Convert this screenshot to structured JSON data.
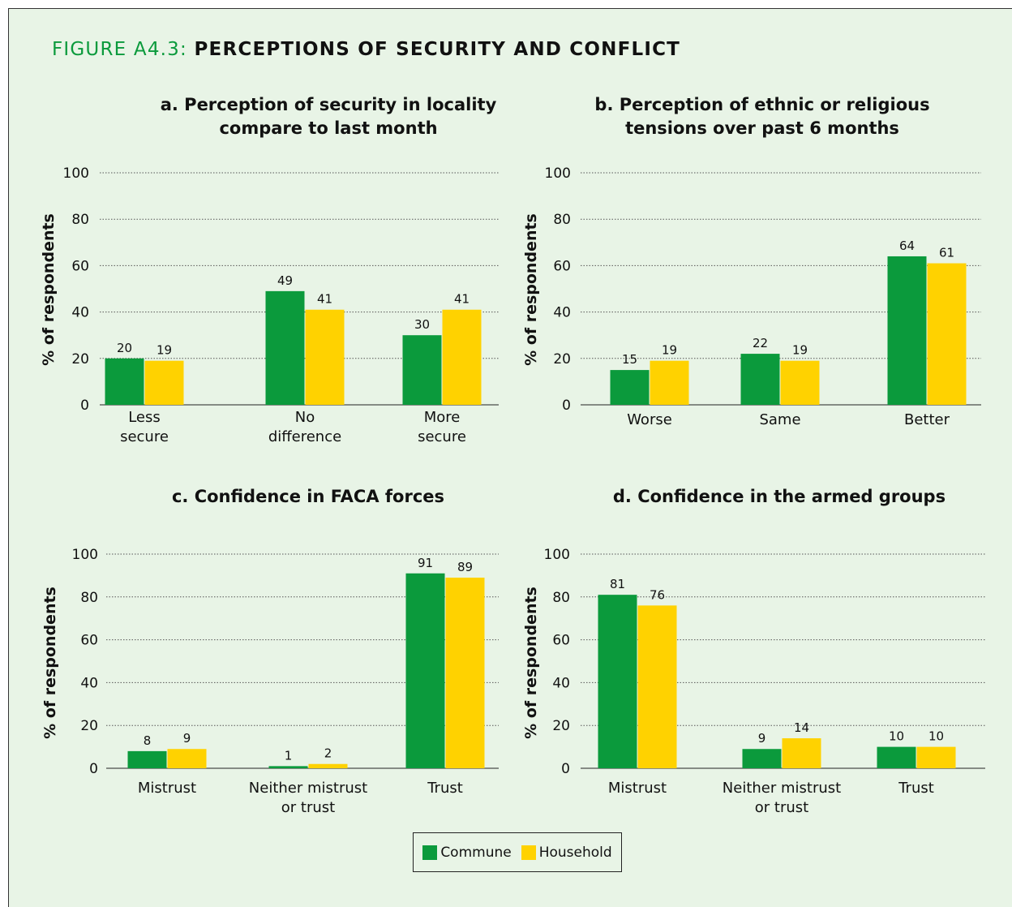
{
  "figure": {
    "label": "FIGURE A4.3:",
    "title": "PERCEPTIONS OF SECURITY AND CONFLICT"
  },
  "colors": {
    "background": "#e8f4e6",
    "commune": "#0b9a3c",
    "household": "#ffd200",
    "label_green": "#0b9a3c"
  },
  "legend": {
    "items": [
      {
        "label": "Commune",
        "color": "#0b9a3c"
      },
      {
        "label": "Household",
        "color": "#ffd200"
      }
    ]
  },
  "chart_data": [
    {
      "type": "bar",
      "title": [
        "a. Perception of security in locality",
        "compare to last month"
      ],
      "ylabel": "% of respondents",
      "ylim": [
        0,
        100
      ],
      "yticks": [
        0,
        20,
        40,
        60,
        80,
        100
      ],
      "grid": true,
      "categories": [
        [
          "Less",
          "secure"
        ],
        [
          "No",
          "difference"
        ],
        [
          "More",
          "secure"
        ]
      ],
      "series": [
        {
          "name": "Commune",
          "values": [
            20,
            49,
            30
          ]
        },
        {
          "name": "Household",
          "values": [
            19,
            41,
            41
          ]
        }
      ]
    },
    {
      "type": "bar",
      "title": [
        "b. Perception of ethnic or religious",
        "tensions over past 6 months"
      ],
      "ylabel": "% of respondents",
      "ylim": [
        0,
        100
      ],
      "yticks": [
        0,
        20,
        40,
        60,
        80,
        100
      ],
      "grid": true,
      "categories": [
        [
          "Worse"
        ],
        [
          "Same"
        ],
        [
          "Better"
        ]
      ],
      "series": [
        {
          "name": "Commune",
          "values": [
            15,
            22,
            64
          ]
        },
        {
          "name": "Household",
          "values": [
            19,
            19,
            61
          ]
        }
      ]
    },
    {
      "type": "bar",
      "title": [
        "c. Confidence in FACA forces"
      ],
      "ylabel": "% of respondents",
      "ylim": [
        0,
        100
      ],
      "yticks": [
        0,
        20,
        40,
        60,
        80,
        100
      ],
      "grid": true,
      "categories": [
        [
          "Mistrust"
        ],
        [
          "Neither mistrust",
          "or trust"
        ],
        [
          "Trust"
        ]
      ],
      "series": [
        {
          "name": "Commune",
          "values": [
            8,
            1,
            91
          ]
        },
        {
          "name": "Household",
          "values": [
            9,
            2,
            89
          ]
        }
      ]
    },
    {
      "type": "bar",
      "title": [
        "d. Confidence in the armed groups"
      ],
      "ylabel": "% of respondents",
      "ylim": [
        0,
        100
      ],
      "yticks": [
        0,
        20,
        40,
        60,
        80,
        100
      ],
      "grid": true,
      "categories": [
        [
          "Mistrust"
        ],
        [
          "Neither mistrust",
          "or trust"
        ],
        [
          "Trust"
        ]
      ],
      "series": [
        {
          "name": "Commune",
          "values": [
            81,
            9,
            10
          ]
        },
        {
          "name": "Household",
          "values": [
            76,
            14,
            10
          ]
        }
      ]
    }
  ]
}
